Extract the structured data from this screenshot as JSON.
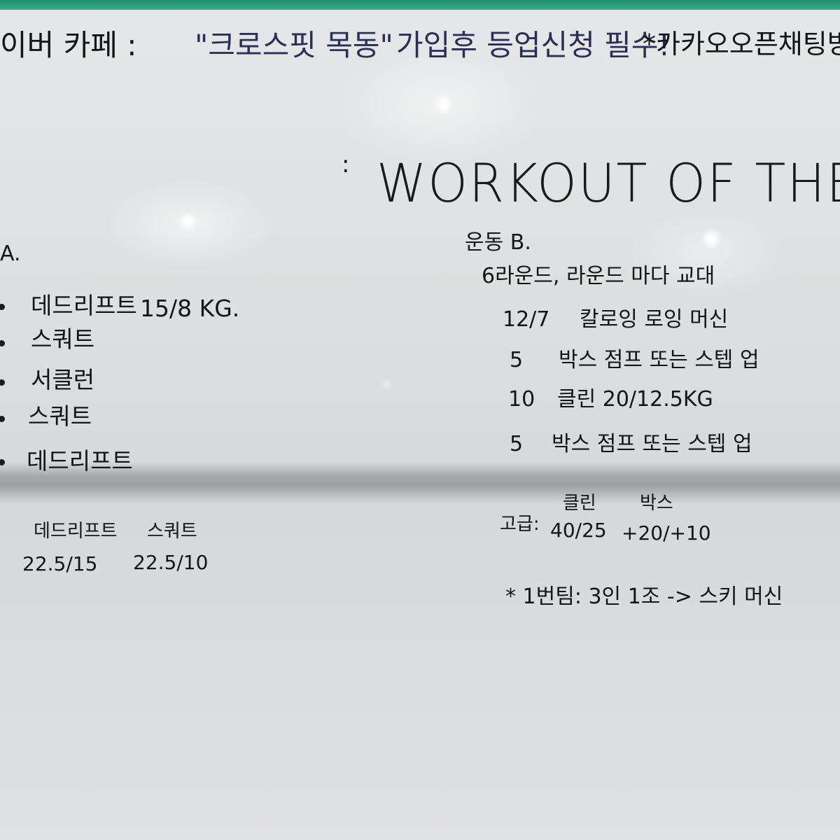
{
  "header": {
    "cafe_label": "이버 카페 :",
    "cafe_name": "\"크로스핏 목동\"",
    "signup_note": "가입후 등업신청 필수!",
    "kakao_note": "*카카오오픈채팅방"
  },
  "title": {
    "colon_mark": ":",
    "text": "WORKOUT OF THE DAY"
  },
  "workout_a": {
    "heading": "A.",
    "items": [
      {
        "name": "데드리프트",
        "detail": "15/8 KG."
      },
      {
        "name": "스쿼트",
        "detail": ""
      },
      {
        "name": "서클런",
        "detail": ""
      },
      {
        "name": "스쿼트",
        "detail": ""
      },
      {
        "name": "데드리프트",
        "detail": ""
      }
    ],
    "advanced": {
      "col1_label": "데드리프트",
      "col1_value": "22.5/15",
      "col2_label": "스쿼트",
      "col2_value": "22.5/10"
    }
  },
  "workout_b": {
    "heading": "운동 B.",
    "scheme": "6라운드, 라운드 마다 교대",
    "items": [
      {
        "reps": "12/7",
        "movement": "칼로잉 로잉 머신"
      },
      {
        "reps": "5",
        "movement": "박스 점프 또는 스텝 업"
      },
      {
        "reps": "10",
        "movement": "클린 20/12.5KG"
      },
      {
        "reps": "5",
        "movement": "박스 점프 또는 스텝 업"
      }
    ],
    "advanced": {
      "label": "고급:",
      "clean_label": "클린",
      "clean_value": "40/25",
      "box_label": "박스",
      "box_value": "+20/+10"
    },
    "note": "* 1번팀: 3인 1조 -> 스키 머신"
  },
  "colors": {
    "marker_black": "#151515",
    "marker_blue": "#2a2f55",
    "frame_green": "#1f8f6e",
    "board_white": "#e3e4e5"
  }
}
